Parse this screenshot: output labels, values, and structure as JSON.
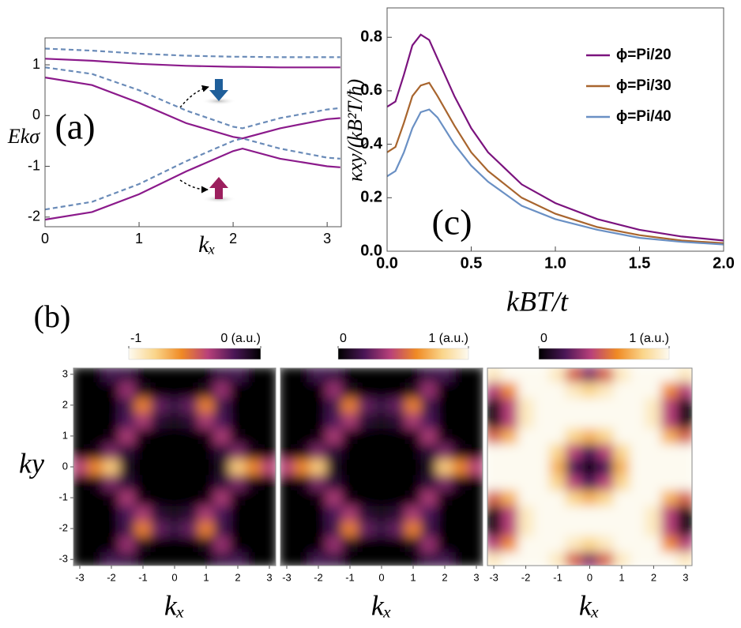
{
  "chart_data": [
    {
      "type": "line",
      "annotation": "(a)",
      "xlabel": "kₓ",
      "ylabel": "Ekσ",
      "x": [
        0,
        0.5,
        1,
        1.5,
        2,
        2.1,
        2.5,
        3,
        3.14
      ],
      "xlim": [
        0,
        3.15
      ],
      "ylim": [
        -2.19,
        1.53
      ],
      "xticks": [
        0,
        1,
        2,
        3
      ],
      "yticks": [
        -2,
        -1,
        0,
        1
      ],
      "series": [
        {
          "color": "#8b1a8b",
          "linestyle": "solid",
          "values": [
            1.12,
            1.08,
            1.02,
            0.98,
            0.96,
            0.96,
            0.95,
            0.95,
            0.95
          ]
        },
        {
          "color": "#8b1a8b",
          "linestyle": "solid",
          "values": [
            0.75,
            0.6,
            0.25,
            -0.15,
            -0.42,
            -0.45,
            -0.25,
            -0.07,
            -0.05
          ]
        },
        {
          "color": "#8b1a8b",
          "linestyle": "solid",
          "values": [
            -2.05,
            -1.9,
            -1.55,
            -1.1,
            -0.7,
            -0.65,
            -0.85,
            -1.0,
            -1.02
          ]
        },
        {
          "color": "#6a8bb8",
          "linestyle": "dashed",
          "values": [
            1.32,
            1.28,
            1.22,
            1.18,
            1.16,
            1.16,
            1.15,
            1.15,
            1.15
          ]
        },
        {
          "color": "#6a8bb8",
          "linestyle": "dashed",
          "values": [
            0.95,
            0.82,
            0.5,
            0.1,
            -0.22,
            -0.25,
            -0.05,
            0.12,
            0.15
          ]
        },
        {
          "color": "#6a8bb8",
          "linestyle": "dashed",
          "values": [
            -1.85,
            -1.7,
            -1.35,
            -0.9,
            -0.5,
            -0.45,
            -0.65,
            -0.83,
            -0.85
          ]
        }
      ]
    },
    {
      "type": "line",
      "annotation": "(c)",
      "xlabel": "kBT/t",
      "ylabel": "κxy/(kB²T/ħ)",
      "legend": "upper right",
      "x": [
        0,
        0.05,
        0.1,
        0.15,
        0.2,
        0.25,
        0.3,
        0.4,
        0.5,
        0.6,
        0.8,
        1.0,
        1.25,
        1.5,
        1.75,
        2.0
      ],
      "xlim": [
        0,
        2
      ],
      "ylim": [
        0,
        0.91
      ],
      "xticks": [
        {
          "value": 0,
          "label": "0.0"
        },
        0.5,
        {
          "value": 1,
          "label": "1.0"
        },
        1.5,
        {
          "value": 2,
          "label": "2.0"
        }
      ],
      "yticks": [
        {
          "value": 0,
          "label": "0.0"
        },
        0.2,
        0.4,
        0.6,
        0.8
      ],
      "series": [
        {
          "name": "ϕ=Pi/20",
          "color": "#7b137e",
          "values": [
            0.54,
            0.56,
            0.66,
            0.77,
            0.81,
            0.79,
            0.72,
            0.58,
            0.46,
            0.37,
            0.25,
            0.18,
            0.12,
            0.08,
            0.055,
            0.04
          ]
        },
        {
          "name": "ϕ=Pi/30",
          "color": "#a8652e",
          "values": [
            0.37,
            0.39,
            0.48,
            0.58,
            0.62,
            0.63,
            0.58,
            0.47,
            0.37,
            0.3,
            0.2,
            0.14,
            0.09,
            0.06,
            0.04,
            0.03
          ]
        },
        {
          "name": "ϕ=Pi/40",
          "color": "#6a90c4",
          "values": [
            0.28,
            0.3,
            0.37,
            0.46,
            0.52,
            0.53,
            0.5,
            0.4,
            0.32,
            0.26,
            0.17,
            0.12,
            0.08,
            0.05,
            0.035,
            0.025
          ]
        }
      ]
    },
    {
      "type": "heatmap",
      "annotation": "(b)",
      "xlabel": "kₓ",
      "ylabel": "ky",
      "xlim": [
        -3.2,
        3.2
      ],
      "ylim": [
        -3.2,
        3.2
      ],
      "xticks": [
        -3,
        -2,
        -1,
        0,
        1,
        2,
        3
      ],
      "yticks": [
        -3,
        -2,
        -1,
        0,
        1,
        2,
        3
      ],
      "zlim": [
        -1,
        0
      ],
      "zticks": [
        -1,
        {
          "value": 0,
          "label": "0 (a.u.)"
        }
      ],
      "colormap": [
        "#fdfaf0",
        "#fad58a",
        "#f08a24",
        "#b8407a",
        "#4a1656",
        "#000000"
      ],
      "x": [
        -3,
        -2.5,
        -2,
        -1.5,
        -1,
        -0.5,
        0,
        0.5,
        1,
        1.5,
        2,
        2.5,
        3
      ],
      "y": [
        -3,
        -2.5,
        -2,
        -1.5,
        -1,
        -0.5,
        0,
        0.5,
        1,
        1.5,
        2,
        2.5,
        3
      ],
      "z": [
        [
          0,
          -0.01,
          -0.18,
          -0.16,
          0,
          0,
          0,
          0,
          0,
          -0.16,
          -0.18,
          -0.01,
          0
        ],
        [
          0,
          0,
          -0.01,
          -0.34,
          -0.07,
          0,
          0,
          0,
          -0.07,
          -0.34,
          -0.01,
          0,
          0
        ],
        [
          0,
          0,
          0,
          -0.18,
          -0.57,
          -0.25,
          -0.16,
          -0.25,
          -0.57,
          -0.18,
          0,
          0,
          0
        ],
        [
          0,
          0,
          0,
          -0.2,
          -0.37,
          -0.12,
          -0.07,
          -0.12,
          -0.37,
          -0.2,
          0,
          0,
          0
        ],
        [
          0,
          0,
          -0.02,
          -0.37,
          -0.02,
          0,
          0,
          0,
          -0.02,
          -0.37,
          -0.02,
          0,
          0
        ],
        [
          -0.01,
          -0.05,
          -0.29,
          -0.12,
          0,
          0,
          0,
          0,
          0,
          -0.12,
          -0.29,
          -0.05,
          -0.01
        ],
        [
          -0.41,
          -0.59,
          -0.77,
          -0.07,
          0,
          0,
          0,
          0,
          0,
          -0.07,
          -0.77,
          -0.59,
          -0.41
        ],
        [
          -0.01,
          -0.05,
          -0.29,
          -0.12,
          0,
          0,
          0,
          0,
          0,
          -0.12,
          -0.29,
          -0.05,
          -0.01
        ],
        [
          0,
          0,
          -0.02,
          -0.37,
          -0.02,
          0,
          0,
          0,
          -0.02,
          -0.37,
          -0.02,
          0,
          0
        ],
        [
          0,
          0,
          0,
          -0.2,
          -0.37,
          -0.12,
          -0.07,
          -0.12,
          -0.37,
          -0.2,
          0,
          0,
          0
        ],
        [
          0,
          0,
          0,
          -0.18,
          -0.57,
          -0.25,
          -0.16,
          -0.25,
          -0.57,
          -0.18,
          0,
          0,
          0
        ],
        [
          0,
          0,
          -0.01,
          -0.34,
          -0.07,
          0,
          0,
          0,
          -0.07,
          -0.34,
          -0.01,
          0,
          0
        ],
        [
          0,
          -0.01,
          -0.18,
          -0.16,
          0,
          0,
          0,
          0,
          0,
          -0.16,
          -0.18,
          -0.01,
          0
        ]
      ]
    },
    {
      "type": "heatmap",
      "xlabel": "kₓ",
      "xlim": [
        -3.2,
        3.2
      ],
      "ylim": [
        -3.2,
        3.2
      ],
      "xticks": [
        -3,
        -2,
        -1,
        0,
        1,
        2,
        3
      ],
      "zlim": [
        0,
        1
      ],
      "zticks": [
        0,
        {
          "value": 1,
          "label": "1 (a.u.)"
        }
      ],
      "colormap": [
        "#000000",
        "#4a1656",
        "#b8407a",
        "#f08a24",
        "#fad58a",
        "#fdfaf0"
      ],
      "x": [
        -3,
        -2.5,
        -2,
        -1.5,
        -1,
        -0.5,
        0,
        0.5,
        1,
        1.5,
        2,
        2.5,
        3
      ],
      "y": [
        -3,
        -2.5,
        -2,
        -1.5,
        -1,
        -0.5,
        0,
        0.5,
        1,
        1.5,
        2,
        2.5,
        3
      ],
      "z": [
        [
          0,
          0.01,
          0.18,
          0.16,
          0,
          0,
          0,
          0,
          0,
          0.16,
          0.18,
          0.01,
          0
        ],
        [
          0,
          0,
          0.01,
          0.34,
          0.07,
          0,
          0,
          0,
          0.07,
          0.34,
          0.01,
          0,
          0
        ],
        [
          0,
          0,
          0,
          0.18,
          0.57,
          0.25,
          0.16,
          0.25,
          0.57,
          0.18,
          0,
          0,
          0
        ],
        [
          0,
          0,
          0,
          0.2,
          0.37,
          0.12,
          0.07,
          0.12,
          0.37,
          0.2,
          0,
          0,
          0
        ],
        [
          0,
          0,
          0.02,
          0.37,
          0.02,
          0,
          0,
          0,
          0.02,
          0.37,
          0.02,
          0,
          0
        ],
        [
          0.01,
          0.05,
          0.29,
          0.12,
          0,
          0,
          0,
          0,
          0,
          0.12,
          0.29,
          0.05,
          0.01
        ],
        [
          0.41,
          0.59,
          0.77,
          0.07,
          0,
          0,
          0,
          0,
          0,
          0.07,
          0.77,
          0.59,
          0.41
        ],
        [
          0.01,
          0.05,
          0.29,
          0.12,
          0,
          0,
          0,
          0,
          0,
          0.12,
          0.29,
          0.05,
          0.01
        ],
        [
          0,
          0,
          0.02,
          0.37,
          0.02,
          0,
          0,
          0,
          0.02,
          0.37,
          0.02,
          0,
          0
        ],
        [
          0,
          0,
          0,
          0.2,
          0.37,
          0.12,
          0.07,
          0.12,
          0.37,
          0.2,
          0,
          0,
          0
        ],
        [
          0,
          0,
          0,
          0.18,
          0.57,
          0.25,
          0.16,
          0.25,
          0.57,
          0.18,
          0,
          0,
          0
        ],
        [
          0,
          0,
          0.01,
          0.34,
          0.07,
          0,
          0,
          0,
          0.07,
          0.34,
          0.01,
          0,
          0
        ],
        [
          0,
          0.01,
          0.18,
          0.16,
          0,
          0,
          0,
          0,
          0,
          0.16,
          0.18,
          0.01,
          0
        ]
      ]
    },
    {
      "type": "heatmap",
      "xlabel": "kₓ",
      "xlim": [
        -3.2,
        3.2
      ],
      "ylim": [
        -3.2,
        3.2
      ],
      "xticks": [
        -3,
        -2,
        -1,
        0,
        1,
        2,
        3
      ],
      "zlim": [
        0,
        1
      ],
      "zticks": [
        0,
        {
          "value": 1,
          "label": "1 (a.u.)"
        }
      ],
      "colormap": [
        "#000000",
        "#4a1656",
        "#b8407a",
        "#f08a24",
        "#fad58a",
        "#fdfaf0"
      ],
      "x": [
        -3,
        -2.5,
        -2,
        -1.5,
        -1,
        -0.5,
        0,
        0.5,
        1,
        1.5,
        2,
        2.5,
        3
      ],
      "y": [
        -3,
        -2.5,
        -2,
        -1.5,
        -1,
        -0.5,
        0,
        0.5,
        1,
        1.5,
        2,
        2.5,
        3
      ],
      "z": [
        [
          0.9,
          1,
          1,
          1,
          0.9,
          0.5,
          0.3,
          0.5,
          0.9,
          1,
          1,
          1,
          0.9
        ],
        [
          0.4,
          0.6,
          1,
          1,
          1,
          0.9,
          0.8,
          0.9,
          1,
          1,
          1,
          0.6,
          0.4
        ],
        [
          0,
          0.4,
          0.9,
          1,
          1,
          1,
          1,
          1,
          1,
          1,
          0.9,
          0.4,
          0
        ],
        [
          0,
          0.4,
          0.9,
          1,
          1,
          1,
          1,
          1,
          1,
          1,
          0.9,
          0.4,
          0
        ],
        [
          0.5,
          0.7,
          1,
          1,
          1,
          0.8,
          0.7,
          0.8,
          1,
          1,
          1,
          0.7,
          0.5
        ],
        [
          1,
          1,
          1,
          1,
          0.8,
          0.4,
          0.2,
          0.4,
          0.8,
          1,
          1,
          1,
          1
        ],
        [
          1,
          1,
          1,
          1,
          0.7,
          0.2,
          0,
          0.2,
          0.7,
          1,
          1,
          1,
          1
        ],
        [
          1,
          1,
          1,
          1,
          0.8,
          0.4,
          0.2,
          0.4,
          0.8,
          1,
          1,
          1,
          1
        ],
        [
          0.5,
          0.7,
          1,
          1,
          1,
          0.8,
          0.7,
          0.8,
          1,
          1,
          1,
          0.7,
          0.5
        ],
        [
          0,
          0.4,
          0.9,
          1,
          1,
          1,
          1,
          1,
          1,
          1,
          0.9,
          0.4,
          0
        ],
        [
          0,
          0.4,
          0.9,
          1,
          1,
          1,
          1,
          1,
          1,
          1,
          0.9,
          0.4,
          0
        ],
        [
          0.4,
          0.6,
          1,
          1,
          1,
          0.9,
          0.8,
          0.9,
          1,
          1,
          1,
          0.6,
          0.4
        ],
        [
          0.9,
          1,
          1,
          1,
          0.9,
          0.5,
          0.3,
          0.5,
          0.9,
          1,
          1,
          1,
          0.9
        ]
      ]
    }
  ]
}
